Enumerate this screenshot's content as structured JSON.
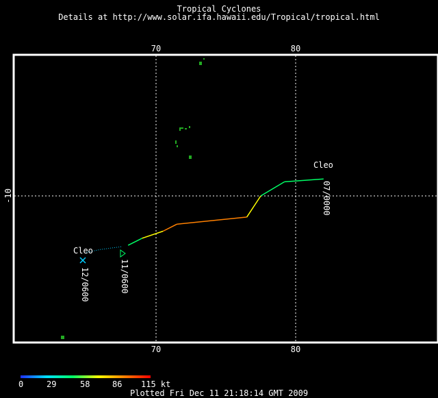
{
  "header": {
    "title": "Tropical Cyclones",
    "subtitle": "Details at http://www.solar.ifa.hawaii.edu/Tropical/tropical.html"
  },
  "map": {
    "lon_ticks_top": [
      "70",
      "80"
    ],
    "lon_ticks_bottom": [
      "70",
      "80"
    ],
    "lat_tick_left": "-10",
    "grid_lines": "dotted",
    "background_color": "#000000",
    "land_color": "#22aa22",
    "lon_range": [
      60,
      90
    ],
    "lat_range": [
      -20.5,
      0.5
    ]
  },
  "storm": {
    "name_start": "Cleo",
    "name_end": "Cleo",
    "label_start_date": "07/0000",
    "label_mid_date": "11/0600",
    "label_end_date": "12/0600",
    "track": [
      {
        "lon": 82.0,
        "lat": -8.8,
        "kt": 35
      },
      {
        "lon": 79.2,
        "lat": -9.0,
        "kt": 40
      },
      {
        "lon": 77.5,
        "lat": -10.0,
        "kt": 50
      },
      {
        "lon": 76.5,
        "lat": -11.5,
        "kt": 85
      },
      {
        "lon": 71.5,
        "lat": -12.0,
        "kt": 110
      },
      {
        "lon": 70.5,
        "lat": -12.5,
        "kt": 80
      },
      {
        "lon": 69.0,
        "lat": -13.0,
        "kt": 50
      },
      {
        "lon": 68.0,
        "lat": -13.5,
        "kt": 40
      }
    ],
    "track_tail_dotted": [
      {
        "lon": 67.5,
        "lat": -13.6
      },
      {
        "lon": 66.0,
        "lat": -13.8
      },
      {
        "lon": 65.0,
        "lat": -14.0
      }
    ]
  },
  "legend": {
    "ticks": [
      "0",
      "29",
      "58",
      "86",
      "115 kt"
    ],
    "colors": [
      "#1f2fff",
      "#00e0ff",
      "#00ff66",
      "#ffff00",
      "#ff8000",
      "#ff0000"
    ]
  },
  "footer": {
    "plotted": "Plotted Fri Dec 11 21:18:14 GMT 2009"
  }
}
